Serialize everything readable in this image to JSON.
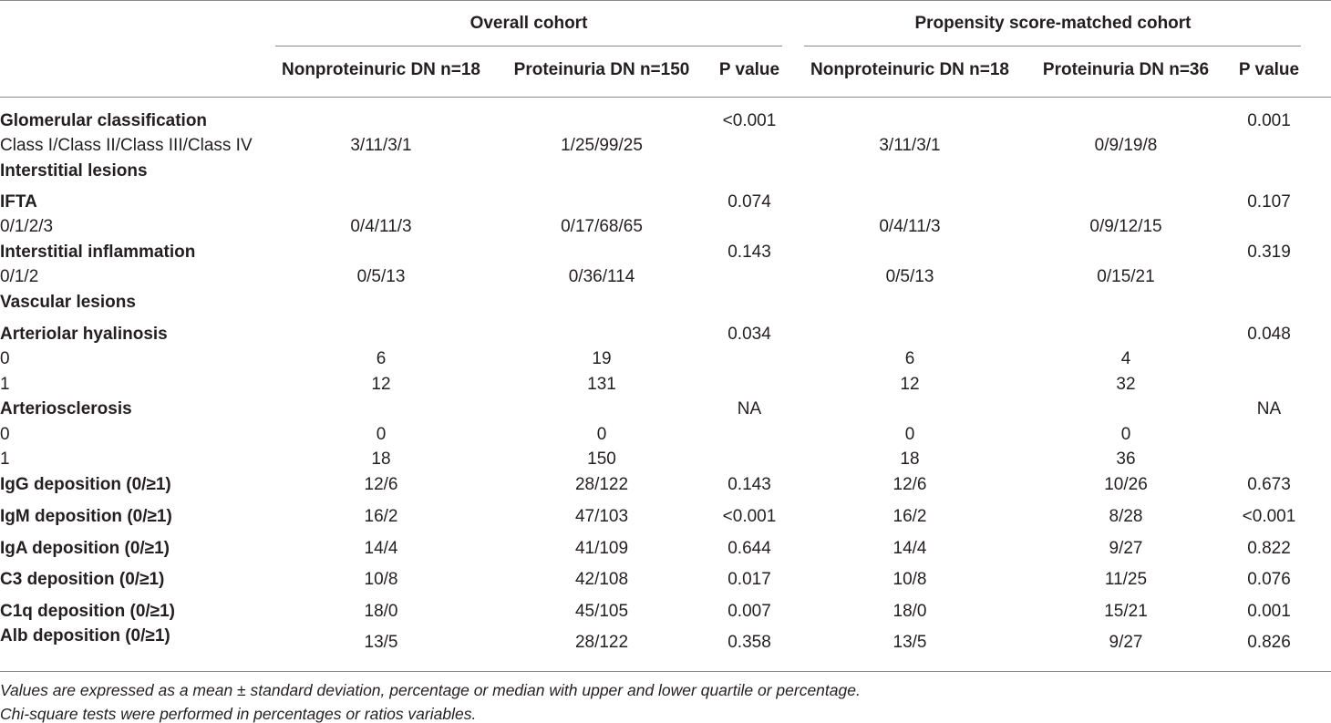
{
  "table": {
    "groups": [
      "Overall cohort",
      "Propensity score-matched cohort"
    ],
    "columns": [
      "Nonproteinuric DN n=18",
      "Proteinuria DN n=150",
      "P value",
      "Nonproteinuric DN n=18",
      "Proteinuria DN n=36",
      "P value"
    ],
    "rows": [
      [
        "Glomerular classification",
        null,
        null,
        "<0.001",
        null,
        null,
        "0.001"
      ],
      [
        "Class I/Class II/Class III/Class IV",
        "3/11/3/1",
        "1/25/99/25",
        null,
        "3/11/3/1",
        "0/9/19/8",
        null
      ],
      [
        "Interstitial lesions",
        null,
        null,
        null,
        null,
        null,
        null
      ],
      [
        "IFTA",
        null,
        null,
        "0.074",
        null,
        null,
        "0.107"
      ],
      [
        "0/1/2/3",
        "0/4/11/3",
        "0/17/68/65",
        null,
        "0/4/11/3",
        "0/9/12/15",
        null
      ],
      [
        "Interstitial inflammation",
        null,
        null,
        "0.143",
        null,
        null,
        "0.319"
      ],
      [
        "0/1/2",
        "0/5/13",
        "0/36/114",
        null,
        "0/5/13",
        "0/15/21",
        null
      ],
      [
        "Vascular lesions",
        null,
        null,
        null,
        null,
        null,
        null
      ],
      [
        "Arteriolar hyalinosis",
        null,
        null,
        "0.034",
        null,
        null,
        "0.048"
      ],
      [
        "0",
        "6",
        "19",
        null,
        "6",
        "4",
        null
      ],
      [
        "1",
        "12",
        "131",
        null,
        "12",
        "32",
        null
      ],
      [
        "Arteriosclerosis",
        null,
        null,
        "NA",
        null,
        null,
        "NA"
      ],
      [
        "0",
        "0",
        "0",
        null,
        "0",
        "0",
        null
      ],
      [
        "1",
        "18",
        "150",
        null,
        "18",
        "36",
        null
      ],
      [
        "IgG deposition (0/≥1)",
        "12/6",
        "28/122",
        "0.143",
        "12/6",
        "10/26",
        "0.673"
      ],
      [
        "IgM deposition (0/≥1)",
        "16/2",
        "47/103",
        "<0.001",
        "16/2",
        "8/28",
        "<0.001"
      ],
      [
        "IgA deposition (0/≥1)",
        "14/4",
        "41/109",
        "0.644",
        "14/4",
        "9/27",
        "0.822"
      ],
      [
        "C3 deposition (0/≥1)",
        "10/8",
        "42/108",
        "0.017",
        "10/8",
        "11/25",
        "0.076"
      ],
      [
        "C1q deposition (0/≥1)",
        "18/0",
        "45/105",
        "0.007",
        "18/0",
        "15/21",
        "0.001"
      ],
      [
        "Alb deposition (0/≥1)",
        "13/5",
        "28/122",
        "0.358",
        "13/5",
        "9/27",
        "0.826"
      ]
    ],
    "footnotes": [
      "Values are expressed as a mean ± standard deviation, percentage or median with upper and lower quartile or percentage.",
      "Chi-square tests were performed in percentages or ratios variables."
    ]
  }
}
